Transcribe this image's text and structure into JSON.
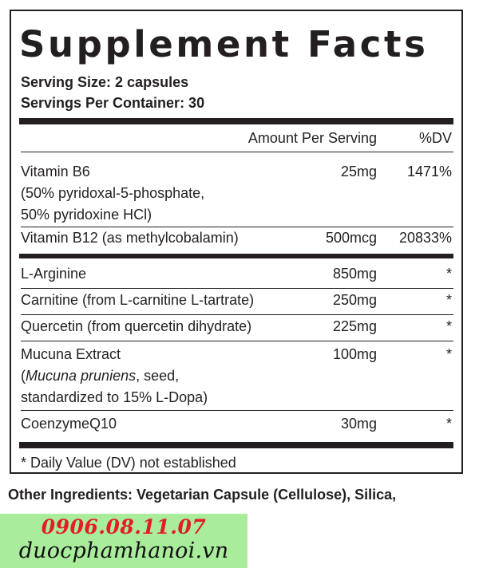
{
  "title": "Supplement Facts",
  "serving_size": "Serving Size: 2 capsules",
  "servings_per_container": "Servings Per Container: 30",
  "columns": {
    "amount": "Amount Per Serving",
    "dv": "%DV"
  },
  "rows": [
    {
      "name_lines": [
        "Vitamin B6",
        "(50% pyridoxal-5-phosphate,",
        "50% pyridoxine HCl)"
      ],
      "amount": "25mg",
      "dv": "1471%"
    },
    {
      "name_lines": [
        "Vitamin B12 (as methylcobalamin)"
      ],
      "amount": "500mcg",
      "dv": "20833%"
    },
    {
      "name_lines": [
        "L-Arginine"
      ],
      "amount": "850mg",
      "dv": "*"
    },
    {
      "name_lines": [
        "Carnitine (from L-carnitine L-tartrate)"
      ],
      "amount": "250mg",
      "dv": "*"
    },
    {
      "name_lines": [
        "Quercetin (from quercetin dihydrate)"
      ],
      "amount": "225mg",
      "dv": "*"
    },
    {
      "name_lines": [
        "Mucuna Extract"
      ],
      "name_italic": "Mucuna pruniens",
      "name_after_italic": ", seed,",
      "name_open_paren": "(",
      "name_last_line": "standardized to 15% L-Dopa)",
      "amount": "100mg",
      "dv": "*"
    },
    {
      "name_lines": [
        "CoenzymeQ10"
      ],
      "amount": "30mg",
      "dv": "*"
    }
  ],
  "footnote": "* Daily Value (DV) not established",
  "other_ingredients": "Other Ingredients: Vegetarian Capsule (Cellulose), Silica,",
  "promo": {
    "phone": "0906.08.11.07",
    "site": "duocphamhanoi.vn",
    "background": "#a8ec9c",
    "phone_color": "#e51c23"
  }
}
